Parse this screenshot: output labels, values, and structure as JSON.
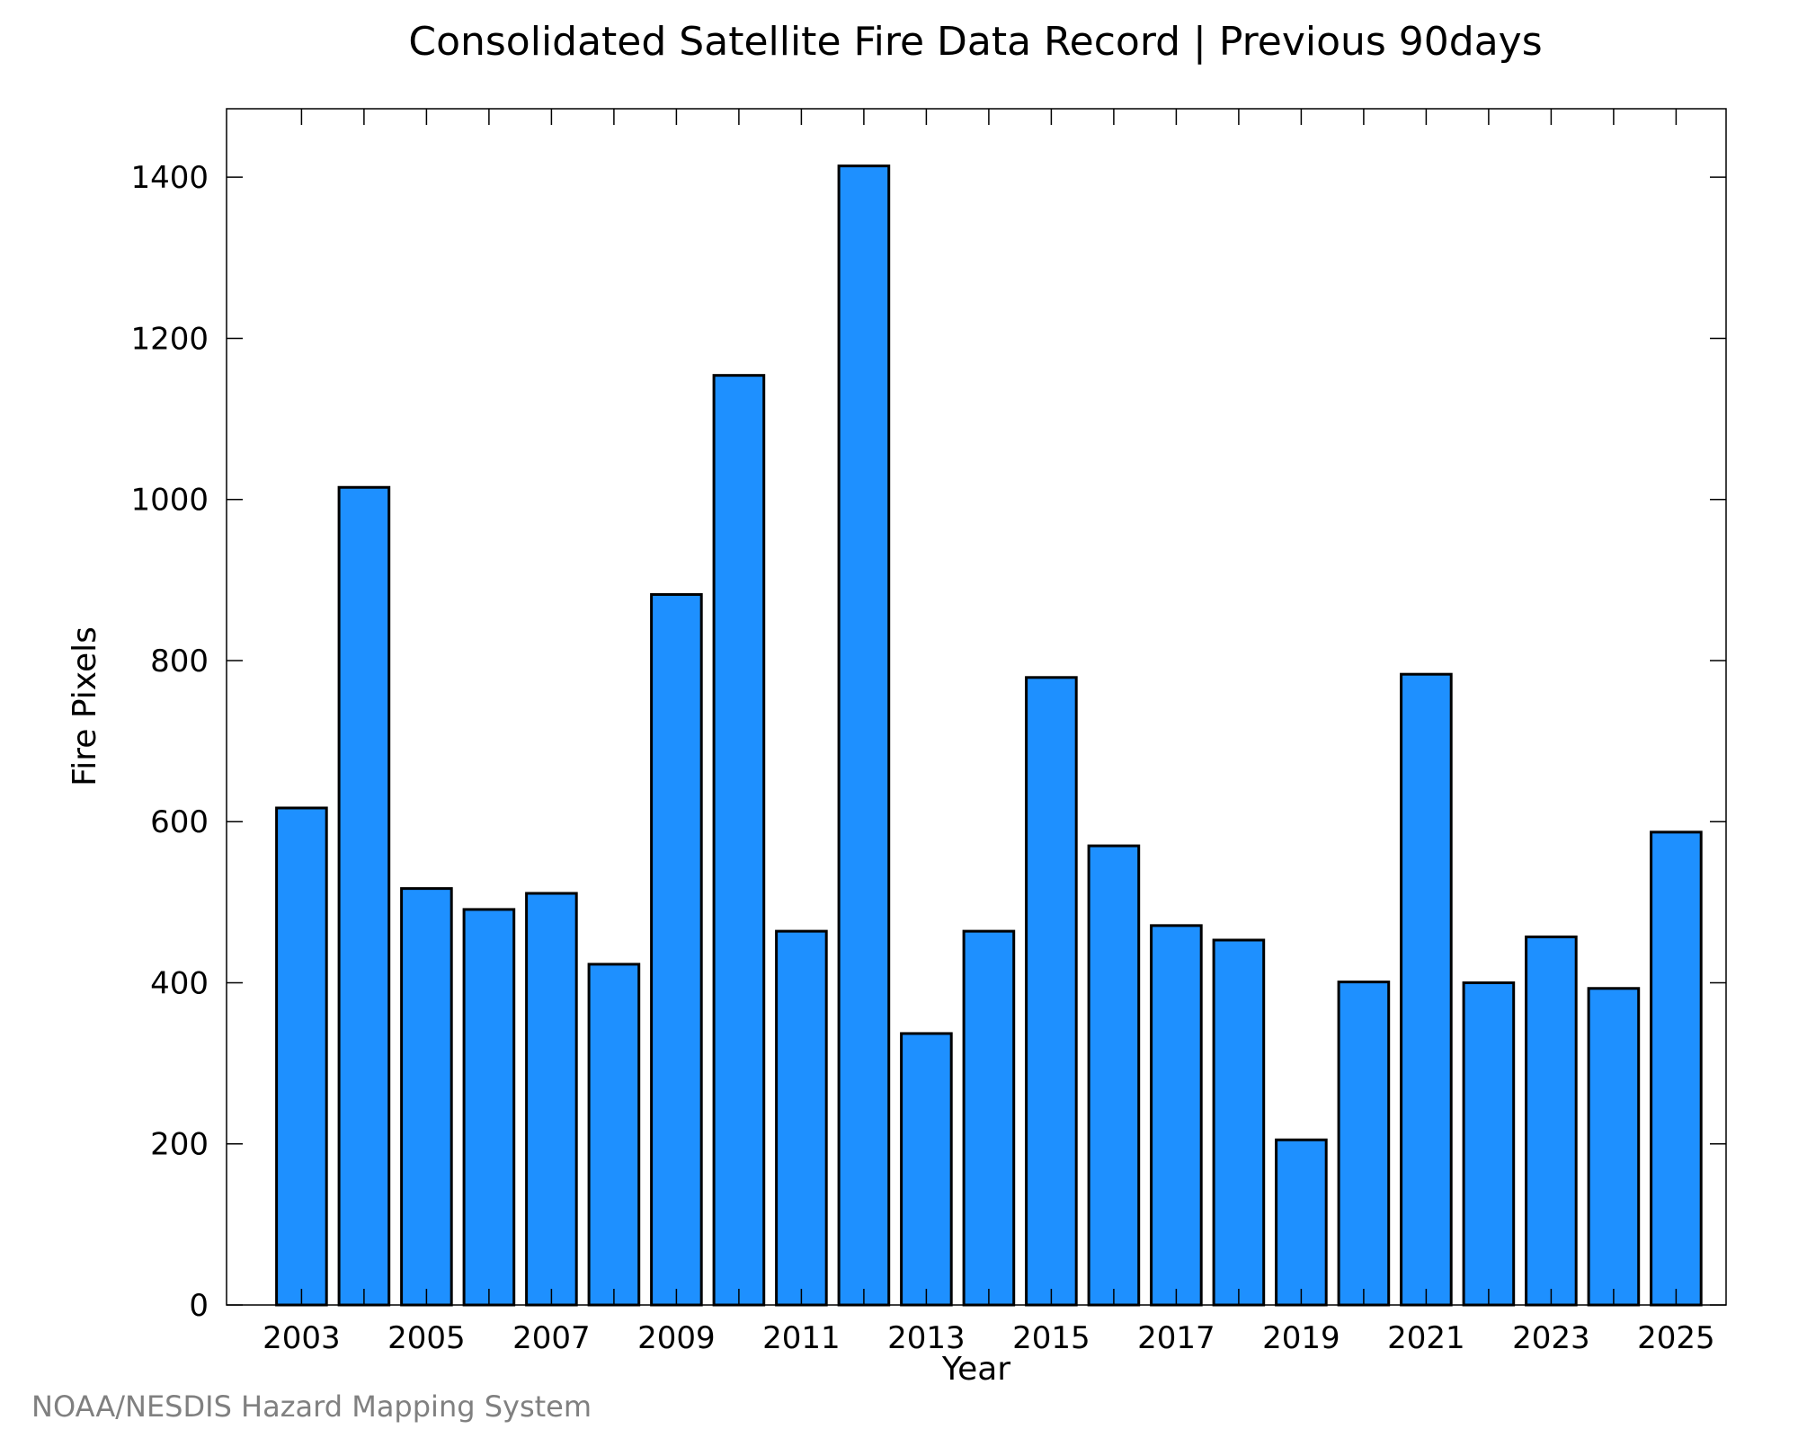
{
  "chart_data": {
    "type": "bar",
    "title": "Consolidated Satellite Fire Data Record | Previous 90days",
    "xlabel": "Year",
    "ylabel": "Fire Pixels",
    "categories": [
      2003,
      2004,
      2005,
      2006,
      2007,
      2008,
      2009,
      2010,
      2011,
      2012,
      2013,
      2014,
      2015,
      2016,
      2017,
      2018,
      2019,
      2020,
      2021,
      2022,
      2023,
      2024,
      2025
    ],
    "values": [
      617,
      1015,
      517,
      491,
      511,
      423,
      882,
      1154,
      464,
      1414,
      337,
      464,
      779,
      570,
      471,
      453,
      205,
      401,
      783,
      400,
      457,
      393,
      587
    ],
    "xlim": [
      2001.8,
      2025.8
    ],
    "ylim": [
      0,
      1485
    ],
    "y_ticks": [
      0,
      200,
      400,
      600,
      800,
      1000,
      1200,
      1400
    ],
    "x_ticks": [
      2003,
      2005,
      2007,
      2009,
      2011,
      2013,
      2015,
      2017,
      2019,
      2021,
      2023,
      2025
    ],
    "bar_color": "#1e90ff",
    "bar_edge_color": "#000000",
    "grid": false,
    "legend": false
  },
  "credit": "NOAA/NESDIS Hazard Mapping System"
}
